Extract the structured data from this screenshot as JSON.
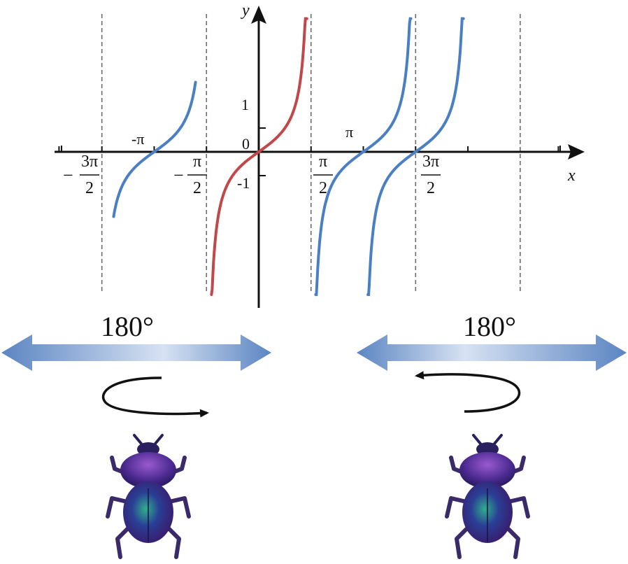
{
  "colors": {
    "asymptote": "#6e6e6e",
    "axis": "#111111",
    "branch_main": "#c0484a",
    "branch_other": "#4a7fc4",
    "arrow_dark": "#5b85c2",
    "arrow_light": "#cfdcf0",
    "beetle_shell": "#2a1f6e",
    "beetle_green": "#1e8a6a",
    "beetle_purple": "#7a3aa8"
  },
  "chart_data": {
    "type": "line",
    "function": "tan",
    "xlabel": "x",
    "ylabel": "y",
    "xlim": [
      -5.46,
      7.46
    ],
    "ylim": [
      -6.5,
      5.7
    ],
    "asymptotes": [
      "-3π/2",
      "-π/2",
      "π/2",
      "3π/2",
      "5π/2"
    ],
    "x_tick_labels": [
      {
        "minus": "−",
        "num": "3π",
        "den": "2",
        "value": -4.712
      },
      {
        "text": "-π",
        "value": -3.1416
      },
      {
        "minus": "−",
        "num": "π",
        "den": "2",
        "value": -1.5708
      },
      {
        "text": "0",
        "value": 0
      },
      {
        "num": "π",
        "den": "2",
        "value": 1.5708
      },
      {
        "text": "π",
        "value": 3.1416
      },
      {
        "num": "3π",
        "den": "2",
        "value": 4.712
      }
    ],
    "y_tick_labels": [
      {
        "text": "1",
        "value": 1
      },
      {
        "text": "-1",
        "value": -1
      }
    ],
    "series": [
      {
        "color_role": "branch_other",
        "x": [
          -4.36,
          -4.0,
          -3.6,
          -3.1416,
          -2.6,
          -2.2,
          -1.89
        ],
        "y": [
          -2.65,
          -1.16,
          -0.49,
          0,
          0.6,
          1.37,
          3.1
        ]
      },
      {
        "color_role": "branch_main",
        "x": [
          -1.42,
          -1.1,
          -0.6,
          0,
          0.6,
          1.1,
          1.44
        ],
        "y": [
          -6.5,
          -1.96,
          -0.68,
          0,
          0.68,
          1.96,
          5.4
        ]
      },
      {
        "color_role": "branch_other",
        "x": [
          1.71,
          2.1,
          2.6,
          3.1416,
          3.6,
          4.0,
          4.31
        ],
        "y": [
          -6.4,
          -1.7,
          -0.6,
          0,
          0.49,
          1.16,
          2.4
        ]
      },
      {
        "color_role": "branch_other",
        "x": [
          3.28,
          3.7,
          4.2,
          4.712,
          5.2,
          5.6,
          5.88
        ],
        "y": [
          -6.4,
          -1.5,
          -0.5,
          0,
          0.5,
          1.3,
          3.0
        ]
      }
    ]
  },
  "panels": {
    "left": {
      "rotation_label": "180°",
      "rotation_direction": "clockwise"
    },
    "right": {
      "rotation_label": "180°",
      "rotation_direction": "counterclockwise"
    }
  }
}
